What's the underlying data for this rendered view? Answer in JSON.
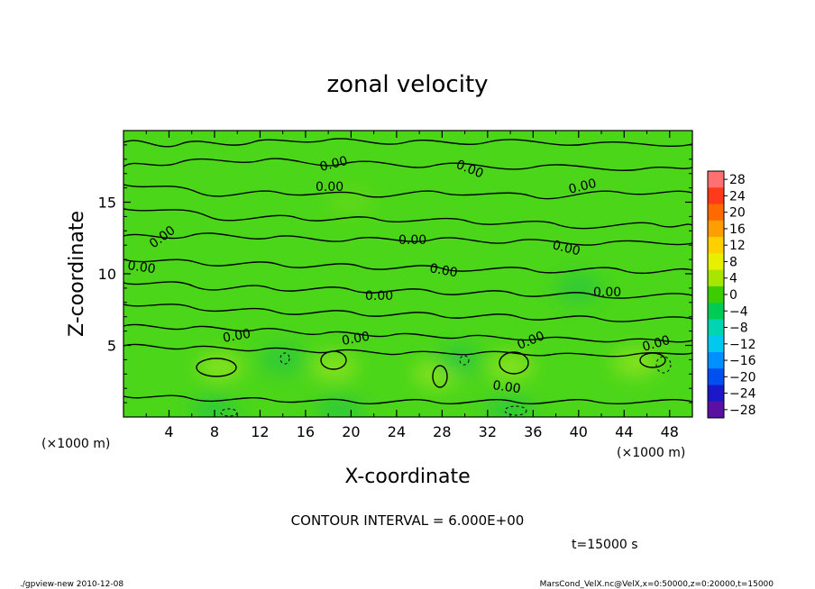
{
  "chart_data": {
    "type": "heatmap",
    "title": "zonal velocity",
    "xlabel": "X-coordinate",
    "ylabel": "Z-coordinate",
    "x_unit": "(×1000 m)",
    "y_unit": "(×1000 m)",
    "xlim": [
      0,
      50
    ],
    "ylim": [
      0,
      20
    ],
    "x_ticks": [
      4,
      8,
      12,
      16,
      20,
      24,
      28,
      32,
      36,
      40,
      44,
      48
    ],
    "y_ticks": [
      5,
      10,
      15
    ],
    "colorbar": {
      "levels": [
        28,
        24,
        20,
        16,
        12,
        8,
        4,
        0,
        -4,
        -8,
        -12,
        -16,
        -20,
        -24,
        -28
      ],
      "colors": [
        "#ff7070",
        "#ff3a1a",
        "#ff6a00",
        "#ff9e00",
        "#ffd000",
        "#e8f000",
        "#a8e600",
        "#3ccc00",
        "#00cc55",
        "#00d4b0",
        "#00c8f0",
        "#0090ff",
        "#0050f0",
        "#1a18c8",
        "#5a10a0"
      ]
    },
    "contour_label": "0.00",
    "contour_interval_text": "CONTOUR INTERVAL = 6.000E+00",
    "field_values": [
      {
        "x": 8.5,
        "z": 3.5,
        "u": 6
      },
      {
        "x": 18.5,
        "z": 3.5,
        "u": 6
      },
      {
        "x": 34,
        "z": 3.5,
        "u": 6
      },
      {
        "x": 27.5,
        "z": 3.0,
        "u": 4
      },
      {
        "x": 45,
        "z": 3.8,
        "u": 4
      },
      {
        "x": 14,
        "z": 4.0,
        "u": -3
      },
      {
        "x": 29.5,
        "z": 4.0,
        "u": -3
      },
      {
        "x": 8,
        "z": 0.5,
        "u": -3
      },
      {
        "x": 19,
        "z": 0.5,
        "u": -3
      },
      {
        "x": 34,
        "z": 0.5,
        "u": -3
      },
      {
        "x": 20,
        "z": 15,
        "u": 2
      },
      {
        "x": 40,
        "z": 9,
        "u": -2
      }
    ]
  },
  "time_label": "t=15000 s",
  "footer_left": "./gpview-new  2010-12-08",
  "footer_right": "MarsCond_VelX.nc@VelX,x=0:50000,z=0:20000,t=15000",
  "colors": {
    "field_base": "#4cd61a",
    "field_light": "#88e21c",
    "field_teal": "#2ec93c"
  }
}
